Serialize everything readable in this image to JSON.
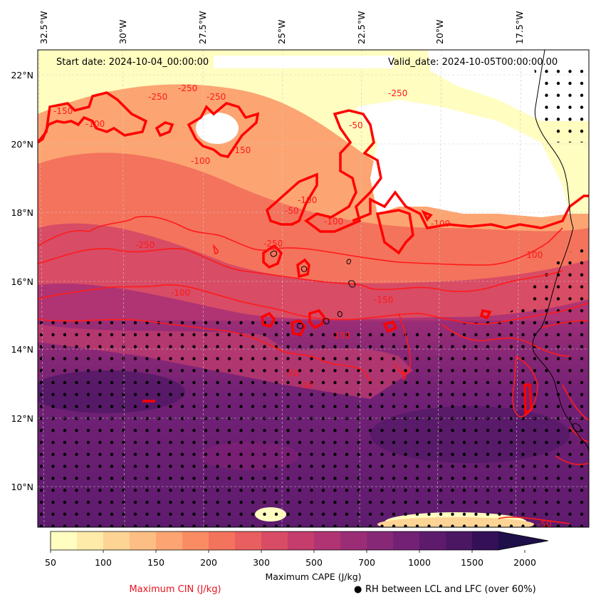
{
  "map": {
    "start_date": "Start date: 2024-10-04_00:00:00",
    "valid_date": "Valid_date: 2024-10-05T00:00:00.00",
    "lon_labels": [
      "32.5°W",
      "30°W",
      "27.5°W",
      "25°W",
      "22.5°W",
      "20°W",
      "17.5°W"
    ],
    "lat_labels": [
      "22°N",
      "20°N",
      "18°N",
      "16°N",
      "14°N",
      "12°N",
      "10°N"
    ],
    "cin_contour_labels": [
      "-150",
      "-250",
      "-250",
      "-100",
      "-250",
      "-100",
      "-150",
      "-100",
      "-50",
      "-50",
      "-100",
      "-250",
      "-250",
      "-100",
      "-150",
      "-100",
      "-50",
      "-150",
      "-250",
      "-100",
      "-50",
      "-50"
    ],
    "colorbar": {
      "title": "Maximum CAPE (J/kg)",
      "tick_labels": [
        "50",
        "100",
        "150",
        "200",
        "300",
        "500",
        "700",
        "1000",
        "1500",
        "2000"
      ],
      "colors": [
        "#fffdc0",
        "#feebaa",
        "#fed495",
        "#fdbe83",
        "#fca572",
        "#fa8c64",
        "#f4735d",
        "#e95e5f",
        "#d84c65",
        "#c53d6d",
        "#b03473",
        "#9b2d76",
        "#872877",
        "#722175",
        "#5e1b6e",
        "#4b1763",
        "#331057",
        "#1e0e4a"
      ]
    },
    "legend": {
      "cin_label": "Maximum CIN (J/kg)",
      "rh_marker": "●",
      "rh_label": "RH between LCL and LFC (over 60%)",
      "cin_color": "#e8121c"
    }
  }
}
